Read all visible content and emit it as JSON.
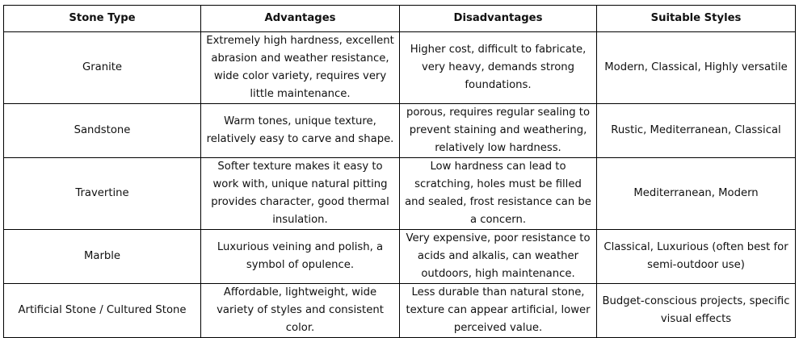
{
  "headers": [
    "Stone Type",
    "Advantages",
    "Disadvantages",
    "Suitable Styles"
  ],
  "rows": [
    {
      "type": "Granite",
      "advantages": "Extremely high hardness, excellent abrasion and weather resistance, wide color variety, requires very little maintenance.",
      "disadvantages": "Higher cost, difficult to fabricate, very heavy, demands strong foundations.",
      "styles": "Modern, Classical, Highly versatile"
    },
    {
      "type": "Sandstone",
      "advantages": "Warm tones, unique texture, relatively easy to carve and shape.",
      "disadvantages": "porous, requires regular sealing to prevent staining and weathering, relatively low hardness.",
      "styles": "Rustic, Mediterranean, Classical"
    },
    {
      "type": "Travertine",
      "advantages": "Softer texture makes it easy to work with, unique natural pitting provides character, good thermal insulation.",
      "disadvantages": "Low hardness can lead to scratching, holes must be filled and sealed, frost resistance can be a concern.",
      "styles": "Mediterranean, Modern"
    },
    {
      "type": "Marble",
      "advantages": "Luxurious veining and polish, a symbol of opulence.",
      "disadvantages": "Very expensive, poor resistance to acids and alkalis, can weather outdoors, high maintenance.",
      "styles": "Classical, Luxurious (often best for semi-outdoor use)"
    },
    {
      "type": "Artificial Stone / Cultured Stone",
      "advantages": "Affordable, lightweight, wide variety of styles and consistent color.",
      "disadvantages": "Less durable than natural stone, texture can appear artificial, lower perceived value.",
      "styles": "Budget-conscious projects, specific visual effects"
    }
  ]
}
